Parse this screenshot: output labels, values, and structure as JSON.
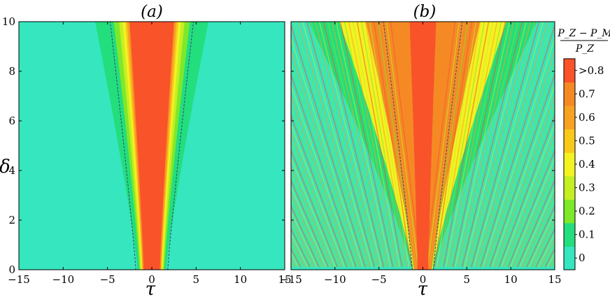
{
  "chart_data": {
    "type": "heatmap",
    "colorbar": {
      "title_numerator": "P_Z − P_M",
      "title_denominator": "P_Z",
      "tick_labels": [
        "0",
        "0.1",
        "0.2",
        "0.3",
        "0.4",
        "0.5",
        "0.6",
        "0.7",
        ">0.8"
      ],
      "levels": [
        0,
        0.1,
        0.2,
        0.3,
        0.4,
        0.5,
        0.6,
        0.7,
        0.8
      ],
      "colors": [
        "#36e6bf",
        "#22de7d",
        "#7ee82a",
        "#c3ef23",
        "#f3f222",
        "#f8c91b",
        "#f7a223",
        "#f58a25",
        "#f9532a"
      ]
    },
    "panels": [
      {
        "title": "(a)",
        "xlabel": "τ",
        "ylabel": "δ",
        "xlim": [
          -15,
          15
        ],
        "ylim": [
          0,
          10
        ],
        "xticks": [
          -15,
          -10,
          -5,
          0,
          5,
          10,
          15
        ],
        "yticks": [
          0,
          2,
          4,
          6,
          8,
          10
        ],
        "xtick_labels": [
          "−15",
          "−10",
          "−5",
          "0",
          "5",
          "10",
          "15"
        ],
        "ytick_labels": [
          "0",
          "2",
          "4",
          "6",
          "8",
          "10"
        ],
        "background_level": 0,
        "pattern": "smooth",
        "contours": [
          {
            "level": 0.1,
            "halfwidth_at_top": 6.4,
            "halfwidth_at_bottom": 1.6
          },
          {
            "level": 0.2,
            "halfwidth_at_top": 4.3,
            "halfwidth_at_bottom": 1.4
          },
          {
            "level": 0.3,
            "halfwidth_at_top": 3.7,
            "halfwidth_at_bottom": 1.3
          },
          {
            "level": 0.4,
            "halfwidth_at_top": 3.3,
            "halfwidth_at_bottom": 1.2
          },
          {
            "level": 0.5,
            "halfwidth_at_top": 3.0,
            "halfwidth_at_bottom": 1.1
          },
          {
            "level": 0.6,
            "halfwidth_at_top": 2.8,
            "halfwidth_at_bottom": 1.05
          },
          {
            "level": 0.7,
            "halfwidth_at_top": 2.6,
            "halfwidth_at_bottom": 1.0
          },
          {
            "level": 0.8,
            "halfwidth_at_top": 2.5,
            "halfwidth_at_bottom": 0.9
          }
        ],
        "dashed_curve_halfwidth": [
          {
            "delta": 0,
            "tau": 1.8
          },
          {
            "delta": 10,
            "tau": 4.7
          }
        ]
      },
      {
        "title": "(b)",
        "xlabel": "τ",
        "ylabel": "",
        "xlim": [
          -15,
          15
        ],
        "ylim": [
          0,
          10
        ],
        "xticks": [
          -15,
          -10,
          -5,
          0,
          5,
          10,
          15
        ],
        "yticks": [
          0,
          2,
          4,
          6,
          8,
          10
        ],
        "xtick_labels": [
          "−15",
          "−10",
          "−5",
          "0",
          "5",
          "10",
          "15"
        ],
        "ytick_labels": [],
        "background_level": 0,
        "pattern": "striped",
        "contours": [
          {
            "level": 0.1,
            "halfwidth_at_top": 13.0,
            "halfwidth_at_bottom": 1.2
          },
          {
            "level": 0.4,
            "halfwidth_at_top": 9.5,
            "halfwidth_at_bottom": 1.1
          },
          {
            "level": 0.7,
            "halfwidth_at_top": 6.5,
            "halfwidth_at_bottom": 1.0
          },
          {
            "level": 0.8,
            "halfwidth_at_top": 1.5,
            "halfwidth_at_bottom": 0.6
          }
        ],
        "dashed_curve_halfwidth": [
          {
            "delta": 0,
            "tau": 1.2
          },
          {
            "delta": 10,
            "tau": 4.5
          }
        ]
      }
    ]
  }
}
